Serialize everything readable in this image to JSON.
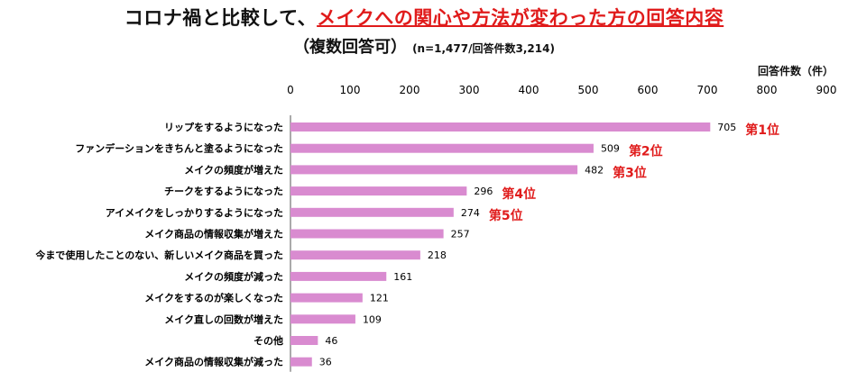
{
  "chart_data": {
    "type": "bar",
    "orientation": "horizontal",
    "title_prefix": "コロナ禍と比較して、",
    "title_highlight": "メイクへの関心や方法が変わった方の回答内容",
    "subtitle": "（複数回答可）",
    "note": "(n=1,477/回答件数3,214)",
    "unit_label": "回答件数（件）",
    "xlim": [
      0,
      900
    ],
    "xticks": [
      "0",
      "100",
      "200",
      "300",
      "400",
      "500",
      "600",
      "700",
      "800",
      "900"
    ],
    "categories": [
      "リップをするようになった",
      "ファンデーションをきちんと塗るようになった",
      "メイクの頻度が増えた",
      "チークをするようになった",
      "アイメイクをしっかりするようになった",
      "メイク商品の情報収集が増えた",
      "今まで使用したことのない、新しいメイク商品を買った",
      "メイクの頻度が減った",
      "メイクをするのが楽しくなった",
      "メイク直しの回数が増えた",
      "その他",
      "メイク商品の情報収集が減った"
    ],
    "values": [
      705,
      509,
      482,
      296,
      274,
      257,
      218,
      161,
      121,
      109,
      46,
      36
    ],
    "value_labels": [
      "705",
      "509",
      "482",
      "296",
      "274",
      "257",
      "218",
      "161",
      "121",
      "109",
      "46",
      "36"
    ],
    "rank_labels": [
      "第1位",
      "第2位",
      "第3位",
      "第4位",
      "第5位",
      "",
      "",
      "",
      "",
      "",
      "",
      ""
    ],
    "bar_color": "#d98bd0",
    "rank_color": "#e01b1b",
    "grid": false,
    "legend": "none"
  }
}
